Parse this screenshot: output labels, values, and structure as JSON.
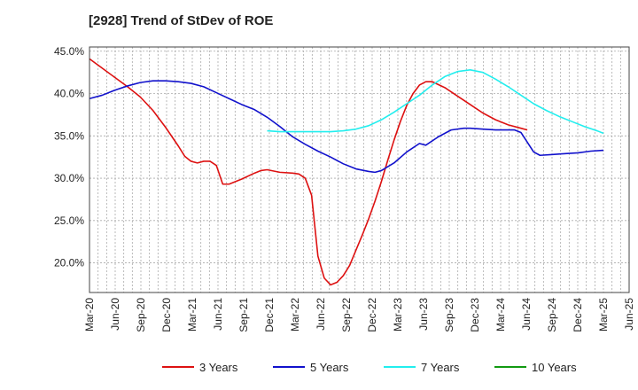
{
  "chart_data": {
    "type": "line",
    "title": "[2928]  Trend of StDev of ROE",
    "xlabel": "",
    "ylabel": "",
    "ylim": [
      16.5,
      45.5
    ],
    "y_ticks": [
      20.0,
      25.0,
      30.0,
      35.0,
      40.0,
      45.0
    ],
    "y_tick_labels": [
      "20.0%",
      "25.0%",
      "30.0%",
      "35.0%",
      "40.0%",
      "45.0%"
    ],
    "x_tick_labels": [
      "Mar-20",
      "Jun-20",
      "Sep-20",
      "Dec-20",
      "Mar-21",
      "Jun-21",
      "Sep-21",
      "Dec-21",
      "Mar-22",
      "Jun-22",
      "Sep-22",
      "Dec-22",
      "Mar-23",
      "Jun-23",
      "Sep-23",
      "Dec-23",
      "Mar-24",
      "Jun-24",
      "Sep-24",
      "Dec-24",
      "Mar-25",
      "Jun-25"
    ],
    "grid": true,
    "legend_position": "bottom",
    "series": [
      {
        "name": "3 Years",
        "color": "#dd1111",
        "points": [
          [
            0,
            44.1
          ],
          [
            2,
            43.0
          ],
          [
            4,
            41.9
          ],
          [
            6,
            40.8
          ],
          [
            8,
            39.6
          ],
          [
            10,
            38.0
          ],
          [
            12,
            36.0
          ],
          [
            14,
            33.8
          ],
          [
            15,
            32.6
          ],
          [
            16,
            32.0
          ],
          [
            17,
            31.8
          ],
          [
            18,
            32.0
          ],
          [
            19,
            32.0
          ],
          [
            20,
            31.5
          ],
          [
            21,
            29.3
          ],
          [
            22,
            29.3
          ],
          [
            24,
            29.9
          ],
          [
            26,
            30.6
          ],
          [
            27,
            30.9
          ],
          [
            28,
            31.0
          ],
          [
            30,
            30.7
          ],
          [
            32,
            30.6
          ],
          [
            33,
            30.5
          ],
          [
            34,
            30.0
          ],
          [
            35,
            28.0
          ],
          [
            36,
            20.8
          ],
          [
            37,
            18.2
          ],
          [
            38,
            17.4
          ],
          [
            39,
            17.7
          ],
          [
            40,
            18.5
          ],
          [
            41,
            19.7
          ],
          [
            42,
            21.5
          ],
          [
            43,
            23.3
          ],
          [
            44,
            25.2
          ],
          [
            45,
            27.3
          ],
          [
            46,
            29.6
          ],
          [
            47,
            32.1
          ],
          [
            48,
            34.5
          ],
          [
            49,
            36.7
          ],
          [
            50,
            38.6
          ],
          [
            51,
            40.0
          ],
          [
            52,
            41.0
          ],
          [
            53,
            41.4
          ],
          [
            54,
            41.4
          ],
          [
            56,
            40.7
          ],
          [
            58,
            39.7
          ],
          [
            60,
            38.7
          ],
          [
            62,
            37.7
          ],
          [
            64,
            36.9
          ],
          [
            66,
            36.3
          ],
          [
            68,
            35.9
          ],
          [
            69,
            35.7
          ]
        ]
      },
      {
        "name": "5 Years",
        "color": "#1111cc",
        "points": [
          [
            0,
            39.4
          ],
          [
            2,
            39.8
          ],
          [
            4,
            40.4
          ],
          [
            6,
            40.9
          ],
          [
            8,
            41.3
          ],
          [
            10,
            41.5
          ],
          [
            12,
            41.5
          ],
          [
            14,
            41.4
          ],
          [
            16,
            41.2
          ],
          [
            18,
            40.8
          ],
          [
            20,
            40.1
          ],
          [
            22,
            39.4
          ],
          [
            24,
            38.7
          ],
          [
            26,
            38.1
          ],
          [
            28,
            37.2
          ],
          [
            30,
            36.1
          ],
          [
            32,
            34.9
          ],
          [
            34,
            34.0
          ],
          [
            36,
            33.2
          ],
          [
            38,
            32.5
          ],
          [
            40,
            31.7
          ],
          [
            42,
            31.1
          ],
          [
            44,
            30.8
          ],
          [
            45,
            30.7
          ],
          [
            46,
            30.9
          ],
          [
            48,
            31.8
          ],
          [
            50,
            33.1
          ],
          [
            52,
            34.1
          ],
          [
            53,
            33.9
          ],
          [
            55,
            34.9
          ],
          [
            57,
            35.7
          ],
          [
            59,
            35.9
          ],
          [
            60,
            35.9
          ],
          [
            62,
            35.8
          ],
          [
            64,
            35.7
          ],
          [
            66,
            35.7
          ],
          [
            67,
            35.7
          ],
          [
            68,
            35.4
          ],
          [
            70,
            33.1
          ],
          [
            71,
            32.7
          ],
          [
            73,
            32.8
          ],
          [
            75,
            32.9
          ],
          [
            77,
            33.0
          ],
          [
            79,
            33.2
          ],
          [
            81,
            33.3
          ]
        ]
      },
      {
        "name": "7 Years",
        "color": "#22eeee",
        "points": [
          [
            28,
            35.6
          ],
          [
            30,
            35.5
          ],
          [
            32,
            35.5
          ],
          [
            34,
            35.5
          ],
          [
            36,
            35.5
          ],
          [
            38,
            35.5
          ],
          [
            40,
            35.6
          ],
          [
            42,
            35.8
          ],
          [
            44,
            36.2
          ],
          [
            46,
            36.9
          ],
          [
            48,
            37.8
          ],
          [
            50,
            38.8
          ],
          [
            52,
            39.8
          ],
          [
            54,
            41.0
          ],
          [
            56,
            42.0
          ],
          [
            58,
            42.6
          ],
          [
            60,
            42.8
          ],
          [
            62,
            42.5
          ],
          [
            64,
            41.7
          ],
          [
            66,
            40.8
          ],
          [
            68,
            39.8
          ],
          [
            70,
            38.8
          ],
          [
            72,
            38.0
          ],
          [
            74,
            37.3
          ],
          [
            76,
            36.7
          ],
          [
            78,
            36.1
          ],
          [
            80,
            35.6
          ],
          [
            81,
            35.3
          ]
        ]
      },
      {
        "name": "10 Years",
        "color": "#119911",
        "points": []
      }
    ]
  }
}
